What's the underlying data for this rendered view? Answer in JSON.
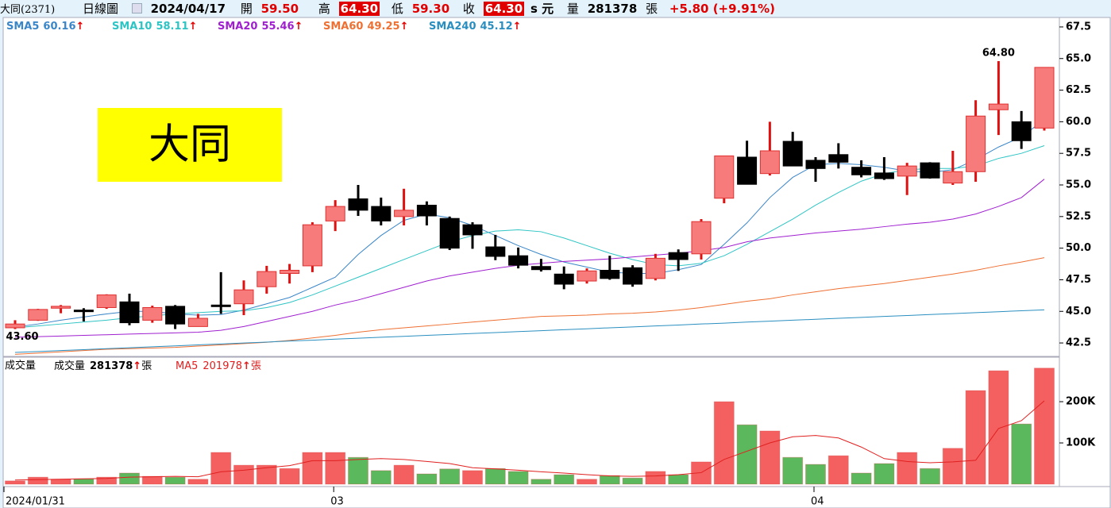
{
  "header": {
    "stock": "大同(2371)",
    "period": "日線圖",
    "date": "2024/04/17",
    "open_label": "開",
    "open": "59.50",
    "high_label": "高",
    "high": "64.30",
    "low_label": "低",
    "low": "59.30",
    "close_label": "收",
    "close": "64.30",
    "currency": "s 元",
    "volume_label": "量",
    "volume": "281378",
    "volume_unit": "張",
    "change": "+5.80 (+9.91%)"
  },
  "chart_data": [
    {
      "type": "candlestick",
      "open": [
        43.7,
        44.3,
        45.25,
        45.1,
        45.3,
        45.75,
        44.3,
        45.4,
        43.8,
        45.5,
        45.6,
        46.95,
        48.0,
        48.6,
        52.15,
        53.9,
        53.3,
        52.5,
        53.4,
        52.35,
        51.85,
        50.1,
        49.4,
        48.55,
        47.95,
        47.4,
        48.25,
        48.45,
        47.6,
        49.65,
        49.55,
        53.95,
        57.2,
        55.9,
        58.45,
        56.95,
        57.4,
        56.4,
        55.95,
        55.7,
        56.75,
        55.15,
        56.05,
        60.95,
        60.0,
        59.5
      ],
      "high": [
        44.3,
        45.2,
        45.5,
        45.25,
        46.35,
        46.4,
        45.45,
        45.5,
        44.8,
        48.1,
        47.45,
        48.6,
        48.75,
        52.05,
        53.8,
        55.0,
        54.0,
        54.7,
        53.7,
        52.5,
        52.05,
        51.05,
        50.05,
        49.15,
        48.55,
        48.4,
        49.4,
        48.65,
        49.55,
        49.9,
        52.3,
        57.3,
        58.5,
        60.0,
        59.2,
        57.2,
        58.3,
        56.95,
        57.2,
        56.75,
        56.8,
        57.7,
        61.7,
        64.8,
        60.85,
        64.3
      ],
      "low": [
        43.6,
        44.25,
        44.85,
        44.2,
        45.2,
        43.9,
        44.1,
        43.6,
        43.8,
        44.8,
        44.7,
        46.4,
        47.2,
        48.1,
        51.35,
        52.55,
        51.8,
        51.8,
        51.8,
        49.85,
        49.95,
        49.05,
        48.4,
        48.15,
        46.75,
        47.2,
        47.5,
        46.95,
        47.45,
        48.2,
        49.1,
        53.55,
        55.05,
        55.75,
        56.5,
        55.25,
        56.3,
        55.6,
        55.4,
        54.2,
        55.5,
        55.0,
        55.25,
        58.95,
        57.85,
        59.3
      ],
      "close": [
        44.0,
        45.15,
        45.4,
        45.0,
        46.3,
        44.1,
        45.3,
        44.0,
        44.45,
        45.45,
        46.7,
        48.15,
        48.25,
        51.85,
        53.3,
        53.0,
        52.15,
        53.0,
        52.55,
        50.0,
        51.05,
        49.35,
        48.65,
        48.3,
        47.15,
        48.2,
        47.6,
        47.15,
        49.2,
        49.1,
        52.1,
        57.3,
        55.05,
        57.7,
        56.5,
        56.3,
        56.8,
        55.8,
        55.5,
        56.5,
        55.55,
        56.05,
        60.45,
        61.4,
        58.5,
        64.3
      ],
      "up_color": "#f77b7b",
      "down_color": "#000000",
      "ylim": [
        41.5,
        68.25
      ],
      "yticks": [
        42.5,
        {
          "value": 45,
          "label": "45.0"
        },
        47.5,
        {
          "value": 50,
          "label": "50.0"
        },
        52.5,
        {
          "value": 55,
          "label": "55.0"
        },
        57.5,
        {
          "value": 60,
          "label": "60.0"
        },
        62.5,
        {
          "value": 65,
          "label": "65.0"
        },
        67.5
      ],
      "arrow": "↑",
      "series": [
        {
          "name": "SMA5",
          "color": "#3a86c8",
          "values": [
            43.75,
            44.0,
            44.3,
            44.55,
            44.8,
            45.0,
            45.0,
            44.8,
            44.7,
            44.75,
            45.1,
            45.6,
            46.1,
            46.9,
            47.7,
            49.5,
            51.0,
            52.2,
            52.7,
            52.4,
            51.8,
            51.0,
            50.2,
            49.5,
            48.9,
            48.5,
            48.1,
            48.0,
            48.0,
            48.3,
            48.7,
            50.3,
            52.0,
            54.0,
            55.6,
            56.6,
            56.7,
            56.6,
            56.4,
            56.1,
            56.0,
            56.2,
            57.0,
            58.0,
            58.8,
            60.16
          ]
        },
        {
          "name": "SMA10",
          "color": "#2ec4c4",
          "values": [
            43.7,
            43.85,
            44.0,
            44.15,
            44.3,
            44.5,
            44.65,
            44.8,
            44.9,
            45.0,
            45.05,
            45.3,
            45.7,
            46.3,
            47.0,
            47.7,
            48.4,
            49.1,
            49.8,
            50.5,
            51.0,
            51.35,
            51.45,
            51.3,
            50.8,
            50.2,
            49.6,
            49.1,
            48.7,
            48.6,
            48.8,
            49.4,
            50.3,
            51.3,
            52.3,
            53.4,
            54.4,
            55.3,
            55.9,
            56.2,
            56.3,
            56.3,
            56.5,
            57.1,
            57.5,
            58.11
          ]
        },
        {
          "name": "SMA20",
          "color": "#a020d0",
          "values": [
            42.95,
            43.0,
            43.05,
            43.1,
            43.15,
            43.2,
            43.25,
            43.3,
            43.35,
            43.5,
            43.8,
            44.2,
            44.6,
            45.0,
            45.5,
            45.9,
            46.4,
            46.9,
            47.4,
            47.8,
            48.1,
            48.4,
            48.65,
            48.8,
            48.95,
            49.05,
            49.15,
            49.3,
            49.45,
            49.6,
            49.8,
            50.05,
            50.5,
            50.8,
            51.0,
            51.2,
            51.35,
            51.5,
            51.7,
            51.9,
            52.05,
            52.3,
            52.7,
            53.3,
            54.0,
            55.46
          ]
        },
        {
          "name": "SMA60",
          "color": "#ee7033",
          "values": [
            41.6,
            41.7,
            41.8,
            41.9,
            42.0,
            42.05,
            42.1,
            42.15,
            42.25,
            42.35,
            42.45,
            42.55,
            42.7,
            42.9,
            43.1,
            43.35,
            43.55,
            43.7,
            43.85,
            44.0,
            44.15,
            44.3,
            44.45,
            44.6,
            44.65,
            44.7,
            44.8,
            44.85,
            44.95,
            45.1,
            45.3,
            45.55,
            45.8,
            46.0,
            46.3,
            46.55,
            46.8,
            47.0,
            47.2,
            47.45,
            47.7,
            47.95,
            48.25,
            48.6,
            48.9,
            49.25
          ]
        },
        {
          "name": "SMA240",
          "color": "#2a8fc0",
          "values": [
            41.75,
            41.82,
            41.9,
            41.97,
            42.05,
            42.12,
            42.2,
            42.27,
            42.35,
            42.42,
            42.5,
            42.57,
            42.65,
            42.72,
            42.8,
            42.87,
            42.95,
            43.02,
            43.1,
            43.17,
            43.25,
            43.32,
            43.4,
            43.47,
            43.55,
            43.62,
            43.7,
            43.77,
            43.85,
            43.92,
            44.0,
            44.07,
            44.15,
            44.22,
            44.3,
            44.37,
            44.45,
            44.52,
            44.6,
            44.67,
            44.75,
            44.82,
            44.9,
            44.97,
            45.05,
            45.12
          ]
        }
      ],
      "annotations": [
        {
          "value": 43.6,
          "label": "43.60"
        },
        {
          "value": 64.8,
          "label": "64.80"
        }
      ],
      "label_box": {
        "text": "大同",
        "color": "#ffff00"
      }
    },
    {
      "type": "bar",
      "title": "成交量",
      "label": "成交量",
      "unit": "張",
      "arrow": "↑",
      "categories": [
        "2024/01/31",
        null,
        null,
        null,
        null,
        null,
        null,
        null,
        null,
        null,
        null,
        null,
        null,
        null,
        "03",
        null,
        null,
        null,
        null,
        null,
        null,
        null,
        null,
        null,
        null,
        null,
        null,
        null,
        null,
        null,
        null,
        null,
        null,
        null,
        null,
        "04",
        null,
        null,
        null,
        null,
        null,
        null,
        null,
        null,
        null,
        null
      ],
      "values": [
        8000,
        17000,
        12000,
        13000,
        17000,
        27000,
        19000,
        17000,
        12000,
        77000,
        46000,
        46000,
        38000,
        77000,
        77000,
        65000,
        33000,
        46000,
        25000,
        37000,
        33000,
        38000,
        31000,
        12000,
        23000,
        12000,
        21000,
        15000,
        31000,
        23000,
        54000,
        200000,
        144000,
        129000,
        65000,
        48000,
        69000,
        27000,
        50000,
        77000,
        38000,
        87000,
        227000,
        275000,
        146000,
        281378
      ],
      "colors": [
        "#f46060",
        "#f46060",
        "#f46060",
        "#5cb85c",
        "#f46060",
        "#5cb85c",
        "#f46060",
        "#5cb85c",
        "#f46060",
        "#f46060",
        "#f46060",
        "#f46060",
        "#f46060",
        "#f46060",
        "#f46060",
        "#5cb85c",
        "#5cb85c",
        "#f46060",
        "#5cb85c",
        "#5cb85c",
        "#f46060",
        "#5cb85c",
        "#5cb85c",
        "#5cb85c",
        "#5cb85c",
        "#f46060",
        "#5cb85c",
        "#5cb85c",
        "#f46060",
        "#5cb85c",
        "#f46060",
        "#f46060",
        "#5cb85c",
        "#f46060",
        "#5cb85c",
        "#5cb85c",
        "#f46060",
        "#5cb85c",
        "#5cb85c",
        "#f46060",
        "#5cb85c",
        "#f46060",
        "#f46060",
        "#f46060",
        "#5cb85c",
        "#f46060"
      ],
      "ylim": [
        0,
        304000
      ],
      "yticks": [
        {
          "value": 100000,
          "label": "100K"
        },
        {
          "value": 200000,
          "label": "200K"
        }
      ],
      "series": [
        {
          "name": "MA5",
          "color": "#e02020",
          "values": [
            10000,
            11000,
            12000,
            13000,
            14000,
            17000,
            18000,
            19000,
            18000,
            30000,
            34000,
            40000,
            45000,
            57000,
            57000,
            60000,
            62000,
            60000,
            55000,
            50000,
            40000,
            37000,
            34000,
            30000,
            27000,
            23000,
            20000,
            19000,
            20000,
            23000,
            28000,
            60000,
            80000,
            100000,
            115000,
            118000,
            112000,
            90000,
            62000,
            55000,
            52000,
            54000,
            58000,
            135000,
            154000,
            201978
          ]
        }
      ]
    }
  ]
}
